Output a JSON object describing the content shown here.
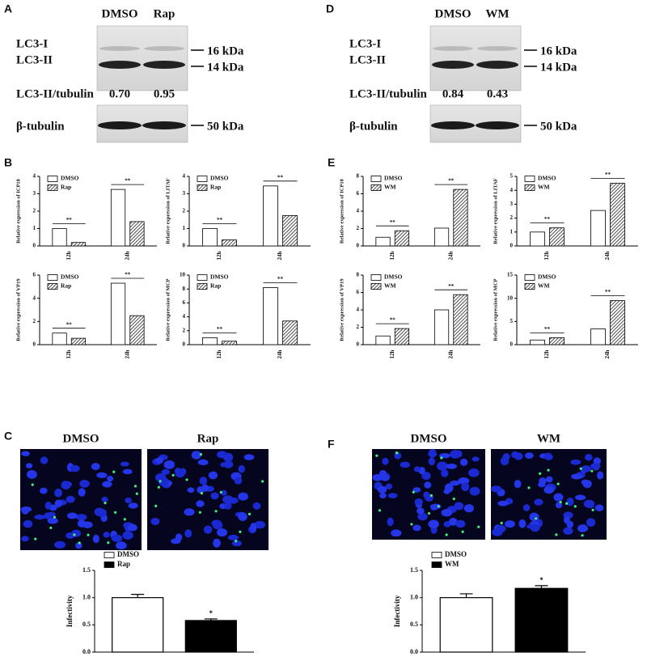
{
  "blots": [
    {
      "letter": "A",
      "lanes": [
        "DMSO",
        "Rap"
      ],
      "bands": [
        "LC3-I",
        "LC3-II"
      ],
      "markers": [
        "16 kDa",
        "14 kDa"
      ],
      "ratio_label": "LC3-II/tubulin",
      "ratios": [
        "0.70",
        "0.95"
      ],
      "loading": "β-tubulin",
      "loading_marker": "50 kDa"
    },
    {
      "letter": "D",
      "lanes": [
        "DMSO",
        "WM"
      ],
      "bands": [
        "LC3-I",
        "LC3-II"
      ],
      "markers": [
        "16 kDa",
        "14 kDa"
      ],
      "ratio_label": "LC3-II/tubulin",
      "ratios": [
        "0.84",
        "0.43"
      ],
      "loading": "β-tubulin",
      "loading_marker": "50 kDa"
    }
  ],
  "panel_letters": [
    "B",
    "E"
  ],
  "images": [
    {
      "letter": "C",
      "labels": [
        "DMSO",
        "Rap"
      ]
    },
    {
      "letter": "F",
      "labels": [
        "DMSO",
        "WM"
      ]
    }
  ],
  "chart_data": [
    {
      "type": "bar",
      "ylabel": "Relative expression of  ICP18",
      "categories": [
        "12h",
        "24h"
      ],
      "series": [
        {
          "name": "DMSO",
          "color": "#ffffff",
          "values": [
            1.0,
            3.25
          ]
        },
        {
          "name": "Rap",
          "color": "#333333",
          "pattern": "hatched",
          "values": [
            0.2,
            1.4
          ]
        }
      ],
      "ylim": [
        0,
        4
      ],
      "yticks": [
        0,
        1,
        2,
        3,
        4
      ],
      "annotations": [
        "**",
        "**"
      ]
    },
    {
      "type": "bar",
      "ylabel": "Relative expression of  LITAF",
      "categories": [
        "12h",
        "24h"
      ],
      "series": [
        {
          "name": "DMSO",
          "color": "#ffffff",
          "values": [
            1.0,
            3.45
          ]
        },
        {
          "name": "Rap",
          "color": "#333333",
          "pattern": "hatched",
          "values": [
            0.35,
            1.75
          ]
        }
      ],
      "ylim": [
        0,
        4
      ],
      "yticks": [
        0,
        1,
        2,
        3,
        4
      ],
      "annotations": [
        "**",
        "**"
      ]
    },
    {
      "type": "bar",
      "ylabel": "Relative expression of VP19",
      "categories": [
        "12h",
        "24h"
      ],
      "series": [
        {
          "name": "DMSO",
          "color": "#ffffff",
          "values": [
            1.0,
            5.3
          ]
        },
        {
          "name": "Rap",
          "color": "#333333",
          "pattern": "hatched",
          "values": [
            0.55,
            2.5
          ]
        }
      ],
      "ylim": [
        0,
        6
      ],
      "yticks": [
        0,
        2,
        4,
        6
      ],
      "annotations": [
        "**",
        "**"
      ]
    },
    {
      "type": "bar",
      "ylabel": "Relative expression of MCP",
      "categories": [
        "12h",
        "24h"
      ],
      "series": [
        {
          "name": "DMSO",
          "color": "#ffffff",
          "values": [
            1.0,
            8.2
          ]
        },
        {
          "name": "Rap",
          "color": "#333333",
          "pattern": "hatched",
          "values": [
            0.5,
            3.4
          ]
        }
      ],
      "ylim": [
        0,
        10
      ],
      "yticks": [
        0,
        2,
        4,
        6,
        8,
        10
      ],
      "annotations": [
        "**",
        "**"
      ]
    },
    {
      "type": "bar",
      "ylabel": "Relative expression of ICP18",
      "categories": [
        "12h",
        "24h"
      ],
      "series": [
        {
          "name": "DMSO",
          "color": "#ffffff",
          "values": [
            1.0,
            2.05
          ]
        },
        {
          "name": "WM",
          "color": "#333333",
          "pattern": "hatched",
          "values": [
            1.75,
            6.5
          ]
        }
      ],
      "ylim": [
        0,
        8
      ],
      "yticks": [
        0,
        2,
        4,
        6,
        8
      ],
      "annotations": [
        "**",
        "**"
      ]
    },
    {
      "type": "bar",
      "ylabel": "Relative expression of LITAF",
      "categories": [
        "12h",
        "24h"
      ],
      "series": [
        {
          "name": "DMSO",
          "color": "#ffffff",
          "values": [
            1.0,
            2.55
          ]
        },
        {
          "name": "WM",
          "color": "#333333",
          "pattern": "hatched",
          "values": [
            1.3,
            4.5
          ]
        }
      ],
      "ylim": [
        0,
        5
      ],
      "yticks": [
        0,
        1,
        2,
        3,
        4,
        5
      ],
      "annotations": [
        "**",
        "**"
      ]
    },
    {
      "type": "bar",
      "ylabel": "Relative expression of VP19",
      "categories": [
        "12h",
        "24h"
      ],
      "series": [
        {
          "name": "DMSO",
          "color": "#ffffff",
          "values": [
            1.0,
            4.0
          ]
        },
        {
          "name": "WM",
          "color": "#333333",
          "pattern": "hatched",
          "values": [
            1.85,
            5.75
          ]
        }
      ],
      "ylim": [
        0,
        8
      ],
      "yticks": [
        0,
        2,
        4,
        6,
        8
      ],
      "annotations": [
        "**",
        "**"
      ]
    },
    {
      "type": "bar",
      "ylabel": "Relative expression of MCP",
      "categories": [
        "12h",
        "24h"
      ],
      "series": [
        {
          "name": "DMSO",
          "color": "#ffffff",
          "values": [
            1.0,
            3.4
          ]
        },
        {
          "name": "WM",
          "color": "#333333",
          "pattern": "hatched",
          "values": [
            1.5,
            9.5
          ]
        }
      ],
      "ylim": [
        0,
        15
      ],
      "yticks": [
        0,
        5,
        10,
        15
      ],
      "annotations": [
        "**",
        "**"
      ]
    },
    {
      "type": "bar",
      "ylabel": "Infectivity",
      "series": [
        {
          "name": "DMSO",
          "color": "#ffffff",
          "values": [
            1.0
          ],
          "errors": [
            0.06
          ]
        },
        {
          "name": "Rap",
          "color": "#000000",
          "values": [
            0.58
          ],
          "errors": [
            0.03
          ]
        }
      ],
      "ylim": [
        0,
        1.5
      ],
      "yticks": [
        {
          "value": 0,
          "label": "0.0"
        },
        {
          "value": 0.5,
          "label": "0.5"
        },
        {
          "value": 1,
          "label": "1.0"
        },
        {
          "value": 1.5,
          "label": "1.5"
        }
      ],
      "annotations": [
        "*"
      ]
    },
    {
      "type": "bar",
      "ylabel": "Infectivity",
      "series": [
        {
          "name": "DMSO",
          "color": "#ffffff",
          "values": [
            1.0
          ],
          "errors": [
            0.07
          ]
        },
        {
          "name": "WM",
          "color": "#000000",
          "values": [
            1.17
          ],
          "errors": [
            0.05
          ]
        }
      ],
      "ylim": [
        0,
        1.5
      ],
      "yticks": [
        {
          "value": 0,
          "label": "0.0"
        },
        {
          "value": 0.5,
          "label": "0.5"
        },
        {
          "value": 1,
          "label": "1.0"
        },
        {
          "value": 1.5,
          "label": "1.5"
        }
      ],
      "annotations": [
        "*"
      ]
    }
  ]
}
